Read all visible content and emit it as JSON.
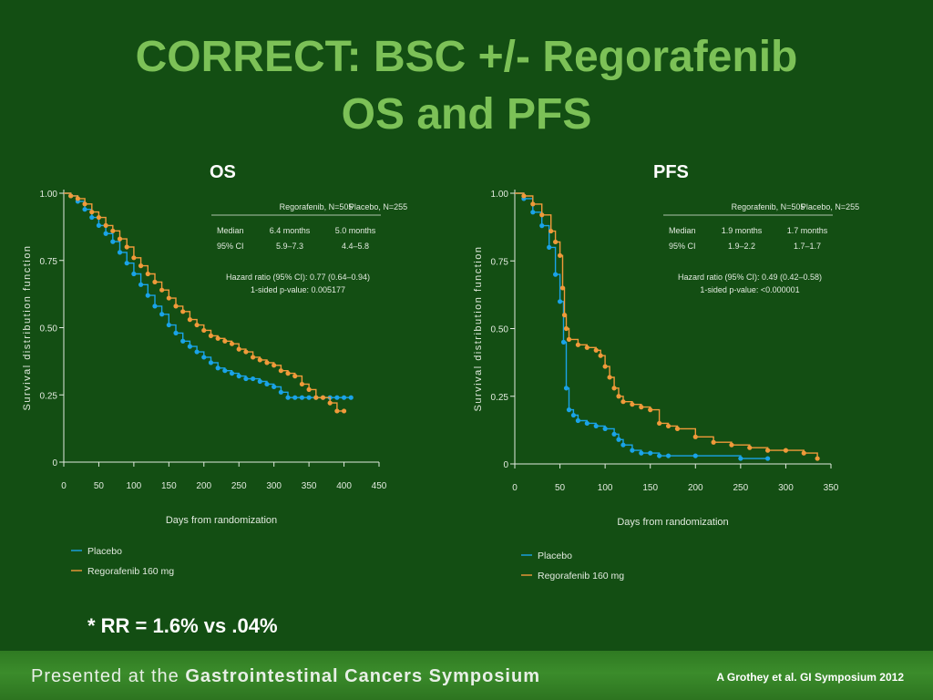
{
  "slide": {
    "title_line1": "CORRECT: BSC +/- Regorafenib",
    "title_line2": "OS and PFS",
    "rr_note": "* RR = 1.6% vs .04%",
    "footer_prefix": "Presented at the ",
    "footer_bold": "Gastrointestinal Cancers Symposium",
    "citation": "A Grothey et al. GI Symposium 2012"
  },
  "colors": {
    "placebo": "#1aa3e8",
    "regorafenib": "#f09a3a",
    "title": "#7cc157",
    "background": "#134e13"
  },
  "chart_data": [
    {
      "type": "line",
      "panel_label": "OS",
      "xlabel": "Days from randomization",
      "ylabel": "Survival distribution function",
      "xlim": [
        0,
        450
      ],
      "ylim": [
        0,
        1
      ],
      "xticks": [
        "0",
        "50",
        "100",
        "150",
        "200",
        "250",
        "300",
        "350",
        "400",
        "450"
      ],
      "yticks": [
        "0",
        "0.25",
        "0.50",
        "0.75",
        "1.00"
      ],
      "xtick_values": [
        0,
        50,
        100,
        150,
        200,
        250,
        300,
        350,
        400,
        450
      ],
      "ytick_values": [
        0,
        0.25,
        0.5,
        0.75,
        1.0
      ],
      "legend": [
        "Placebo",
        "Regorafenib 160 mg"
      ],
      "table": {
        "headers": [
          "",
          "Regorafenib, N=505",
          "Placebo, N=255"
        ],
        "rows": [
          [
            "Median",
            "6.4 months",
            "5.0 months"
          ],
          [
            "95% CI",
            "5.9–7.3",
            "4.4–5.8"
          ]
        ],
        "hr_line1": "Hazard ratio (95% CI): 0.77 (0.64–0.94)",
        "hr_line2": "1-sided p-value: 0.005177"
      },
      "series": [
        {
          "name": "Placebo",
          "x": [
            0,
            10,
            20,
            30,
            40,
            50,
            60,
            70,
            80,
            90,
            100,
            110,
            120,
            130,
            140,
            150,
            160,
            170,
            180,
            190,
            200,
            210,
            220,
            230,
            240,
            250,
            260,
            270,
            280,
            290,
            300,
            310,
            320,
            330,
            340,
            350,
            360,
            370,
            380,
            390,
            400,
            410
          ],
          "y": [
            1.0,
            0.99,
            0.97,
            0.94,
            0.91,
            0.88,
            0.85,
            0.82,
            0.78,
            0.74,
            0.7,
            0.66,
            0.62,
            0.58,
            0.55,
            0.51,
            0.48,
            0.45,
            0.43,
            0.41,
            0.39,
            0.37,
            0.35,
            0.34,
            0.33,
            0.32,
            0.31,
            0.31,
            0.3,
            0.29,
            0.28,
            0.26,
            0.24,
            0.24,
            0.24,
            0.24,
            0.24,
            0.24,
            0.24,
            0.24,
            0.24,
            0.24
          ]
        },
        {
          "name": "Regorafenib 160 mg",
          "x": [
            0,
            10,
            20,
            30,
            40,
            50,
            60,
            70,
            80,
            90,
            100,
            110,
            120,
            130,
            140,
            150,
            160,
            170,
            180,
            190,
            200,
            210,
            220,
            230,
            240,
            250,
            260,
            270,
            280,
            290,
            300,
            310,
            320,
            330,
            340,
            350,
            360,
            370,
            380,
            390,
            400
          ],
          "y": [
            1.0,
            0.99,
            0.98,
            0.96,
            0.93,
            0.91,
            0.88,
            0.86,
            0.83,
            0.8,
            0.76,
            0.73,
            0.7,
            0.67,
            0.64,
            0.61,
            0.58,
            0.56,
            0.53,
            0.51,
            0.49,
            0.47,
            0.46,
            0.45,
            0.44,
            0.42,
            0.41,
            0.39,
            0.38,
            0.37,
            0.36,
            0.34,
            0.33,
            0.32,
            0.29,
            0.27,
            0.24,
            0.24,
            0.22,
            0.19,
            0.19
          ]
        }
      ]
    },
    {
      "type": "line",
      "panel_label": "PFS",
      "xlabel": "Days from randomization",
      "ylabel": "Survival distribution function",
      "xlim": [
        0,
        350
      ],
      "ylim": [
        0,
        1
      ],
      "xticks": [
        "0",
        "50",
        "100",
        "150",
        "200",
        "250",
        "300",
        "350"
      ],
      "yticks": [
        "0",
        "0.25",
        "0.50",
        "0.75",
        "1.00"
      ],
      "xtick_values": [
        0,
        50,
        100,
        150,
        200,
        250,
        300,
        350
      ],
      "ytick_values": [
        0,
        0.25,
        0.5,
        0.75,
        1.0
      ],
      "legend": [
        "Placebo",
        "Regorafenib 160 mg"
      ],
      "table": {
        "headers": [
          "",
          "Regorafenib, N=505",
          "Placebo, N=255"
        ],
        "rows": [
          [
            "Median",
            "1.9 months",
            "1.7 months"
          ],
          [
            "95% CI",
            "1.9–2.2",
            "1.7–1.7"
          ]
        ],
        "hr_line1": "Hazard ratio (95% CI): 0.49 (0.42–0.58)",
        "hr_line2": "1-sided p-value: <0.000001"
      },
      "series": [
        {
          "name": "Placebo",
          "x": [
            0,
            10,
            20,
            30,
            38,
            45,
            50,
            54,
            57,
            60,
            65,
            70,
            80,
            90,
            100,
            110,
            115,
            120,
            130,
            140,
            150,
            160,
            170,
            200,
            250,
            280
          ],
          "y": [
            1.0,
            0.98,
            0.93,
            0.88,
            0.8,
            0.7,
            0.6,
            0.45,
            0.28,
            0.2,
            0.18,
            0.16,
            0.15,
            0.14,
            0.13,
            0.11,
            0.09,
            0.07,
            0.05,
            0.04,
            0.04,
            0.03,
            0.03,
            0.03,
            0.02,
            0.02
          ]
        },
        {
          "name": "Regorafenib 160 mg",
          "x": [
            0,
            10,
            20,
            30,
            40,
            45,
            50,
            53,
            55,
            57,
            60,
            70,
            80,
            90,
            95,
            100,
            105,
            110,
            115,
            120,
            130,
            140,
            150,
            160,
            170,
            180,
            200,
            220,
            240,
            260,
            280,
            300,
            320,
            335
          ],
          "y": [
            1.0,
            0.99,
            0.96,
            0.92,
            0.86,
            0.82,
            0.77,
            0.65,
            0.55,
            0.5,
            0.46,
            0.44,
            0.43,
            0.42,
            0.4,
            0.36,
            0.32,
            0.28,
            0.25,
            0.23,
            0.22,
            0.21,
            0.2,
            0.15,
            0.14,
            0.13,
            0.1,
            0.08,
            0.07,
            0.06,
            0.05,
            0.05,
            0.04,
            0.02
          ]
        }
      ]
    }
  ]
}
